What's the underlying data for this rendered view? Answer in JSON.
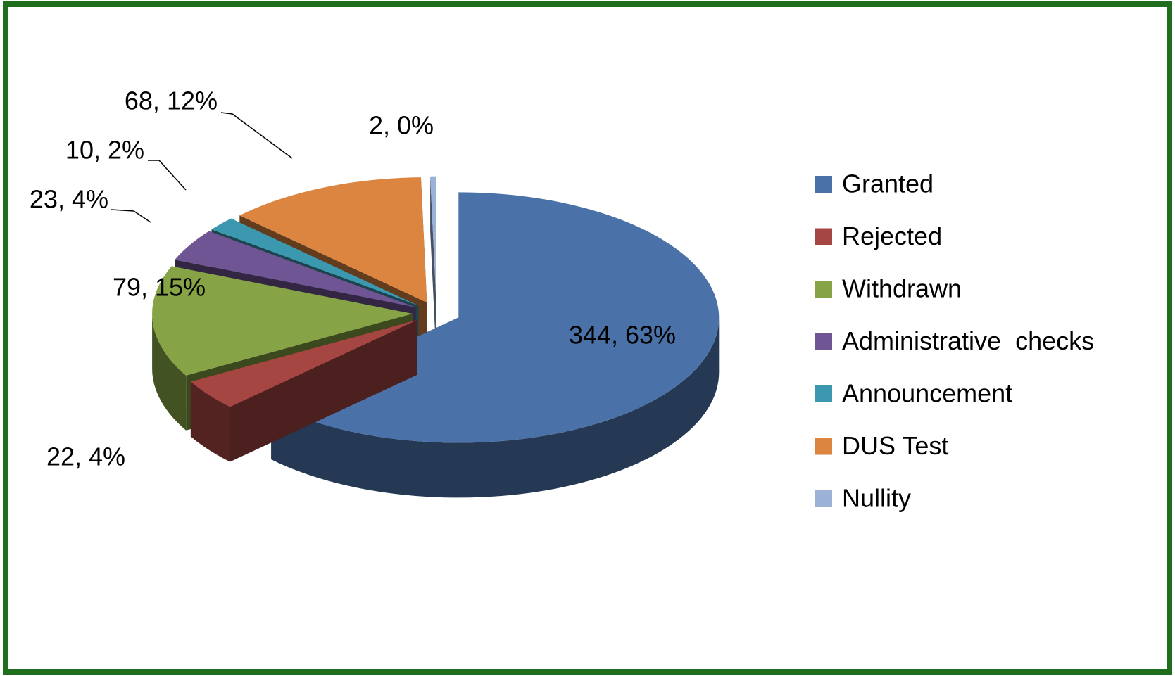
{
  "chart_data": {
    "type": "pie",
    "categories": [
      "Granted",
      "Rejected",
      "Withdrawn",
      "Administrative  checks",
      "Announcement",
      "DUS Test",
      "Nullity"
    ],
    "values": [
      344,
      22,
      79,
      23,
      10,
      68,
      2
    ],
    "value_labels": [
      "344, 63%",
      "22, 4%",
      "79, 15%",
      "23, 4%",
      "10, 2%",
      "68, 12%",
      "2, 0%"
    ],
    "colors": [
      "#4a72a8",
      "#a64642",
      "#86a345",
      "#6f5593",
      "#3b98ae",
      "#db8540",
      "#9bb1d6"
    ],
    "legend": "right"
  }
}
